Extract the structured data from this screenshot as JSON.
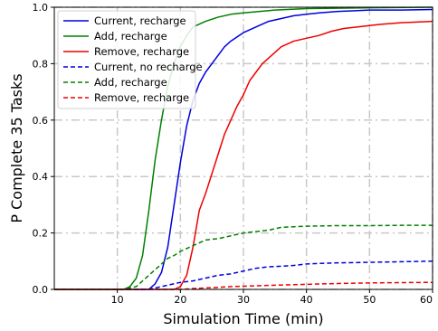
{
  "chart_data": {
    "type": "line",
    "title": "",
    "xlabel": "Simulation Time (min)",
    "ylabel": "P Complete 35 Tasks",
    "xlim": [
      0,
      60
    ],
    "ylim": [
      0,
      1.0
    ],
    "xticks": [
      10,
      20,
      30,
      40,
      50,
      60
    ],
    "yticks": [
      0.0,
      0.2,
      0.4,
      0.6,
      0.8,
      1.0
    ],
    "xtick_labels": [
      "10",
      "20",
      "30",
      "40",
      "50",
      "60"
    ],
    "ytick_labels": [
      "0.0",
      "0.2",
      "0.4",
      "0.6",
      "0.8",
      "1.0"
    ],
    "grid": true,
    "legend_position": "top-left",
    "series": [
      {
        "name": "Current, recharge",
        "color": "#0000dd",
        "style": "solid",
        "points": [
          [
            0,
            0
          ],
          [
            15,
            0
          ],
          [
            16,
            0.02
          ],
          [
            17,
            0.06
          ],
          [
            18,
            0.15
          ],
          [
            19,
            0.3
          ],
          [
            20,
            0.45
          ],
          [
            21,
            0.58
          ],
          [
            22,
            0.67
          ],
          [
            23,
            0.73
          ],
          [
            24,
            0.77
          ],
          [
            25,
            0.8
          ],
          [
            26,
            0.83
          ],
          [
            27,
            0.86
          ],
          [
            28,
            0.88
          ],
          [
            30,
            0.91
          ],
          [
            32,
            0.93
          ],
          [
            34,
            0.95
          ],
          [
            36,
            0.96
          ],
          [
            38,
            0.97
          ],
          [
            40,
            0.975
          ],
          [
            42,
            0.98
          ],
          [
            45,
            0.985
          ],
          [
            50,
            0.99
          ],
          [
            55,
            0.99
          ],
          [
            60,
            0.992
          ]
        ]
      },
      {
        "name": "Add, recharge",
        "color": "#008000",
        "style": "solid",
        "points": [
          [
            0,
            0
          ],
          [
            11,
            0
          ],
          [
            12,
            0.01
          ],
          [
            13,
            0.04
          ],
          [
            14,
            0.12
          ],
          [
            15,
            0.28
          ],
          [
            16,
            0.46
          ],
          [
            17,
            0.6
          ],
          [
            18,
            0.72
          ],
          [
            19,
            0.8
          ],
          [
            20,
            0.86
          ],
          [
            21,
            0.9
          ],
          [
            22,
            0.93
          ],
          [
            24,
            0.95
          ],
          [
            26,
            0.965
          ],
          [
            28,
            0.975
          ],
          [
            30,
            0.98
          ],
          [
            35,
            0.99
          ],
          [
            40,
            0.995
          ],
          [
            50,
            0.998
          ],
          [
            60,
            1.0
          ]
        ]
      },
      {
        "name": "Remove, recharge",
        "color": "#ee0000",
        "style": "solid",
        "points": [
          [
            0,
            0
          ],
          [
            19,
            0
          ],
          [
            20,
            0.01
          ],
          [
            21,
            0.05
          ],
          [
            22,
            0.15
          ],
          [
            23,
            0.28
          ],
          [
            24,
            0.34
          ],
          [
            25,
            0.41
          ],
          [
            26,
            0.48
          ],
          [
            27,
            0.55
          ],
          [
            28,
            0.6
          ],
          [
            29,
            0.65
          ],
          [
            30,
            0.69
          ],
          [
            31,
            0.74
          ],
          [
            32,
            0.77
          ],
          [
            33,
            0.8
          ],
          [
            34,
            0.82
          ],
          [
            36,
            0.86
          ],
          [
            38,
            0.88
          ],
          [
            40,
            0.89
          ],
          [
            42,
            0.9
          ],
          [
            44,
            0.915
          ],
          [
            46,
            0.925
          ],
          [
            48,
            0.93
          ],
          [
            50,
            0.935
          ],
          [
            52,
            0.94
          ],
          [
            55,
            0.945
          ],
          [
            60,
            0.95
          ]
        ]
      },
      {
        "name": "Current, no recharge",
        "color": "#0000dd",
        "style": "dashed",
        "points": [
          [
            0,
            0
          ],
          [
            15,
            0
          ],
          [
            16,
            0.005
          ],
          [
            17,
            0.01
          ],
          [
            18,
            0.015
          ],
          [
            19,
            0.02
          ],
          [
            20,
            0.025
          ],
          [
            22,
            0.03
          ],
          [
            24,
            0.04
          ],
          [
            26,
            0.05
          ],
          [
            28,
            0.055
          ],
          [
            30,
            0.065
          ],
          [
            32,
            0.075
          ],
          [
            34,
            0.08
          ],
          [
            36,
            0.082
          ],
          [
            38,
            0.085
          ],
          [
            40,
            0.09
          ],
          [
            42,
            0.092
          ],
          [
            45,
            0.094
          ],
          [
            50,
            0.096
          ],
          [
            55,
            0.098
          ],
          [
            60,
            0.1
          ]
        ]
      },
      {
        "name": "Add, recharge",
        "color": "#008000",
        "style": "dashed",
        "points": [
          [
            0,
            0
          ],
          [
            11,
            0
          ],
          [
            12,
            0.005
          ],
          [
            13,
            0.01
          ],
          [
            14,
            0.03
          ],
          [
            15,
            0.05
          ],
          [
            16,
            0.07
          ],
          [
            17,
            0.09
          ],
          [
            18,
            0.11
          ],
          [
            19,
            0.12
          ],
          [
            20,
            0.135
          ],
          [
            21,
            0.145
          ],
          [
            22,
            0.155
          ],
          [
            23,
            0.165
          ],
          [
            24,
            0.175
          ],
          [
            26,
            0.18
          ],
          [
            28,
            0.19
          ],
          [
            30,
            0.2
          ],
          [
            32,
            0.205
          ],
          [
            34,
            0.21
          ],
          [
            36,
            0.22
          ],
          [
            38,
            0.222
          ],
          [
            40,
            0.224
          ],
          [
            45,
            0.226
          ],
          [
            50,
            0.226
          ],
          [
            55,
            0.227
          ],
          [
            60,
            0.227
          ]
        ]
      },
      {
        "name": "Remove, recharge",
        "color": "#ee0000",
        "style": "dashed",
        "points": [
          [
            0,
            0
          ],
          [
            20,
            0
          ],
          [
            22,
            0.003
          ],
          [
            25,
            0.006
          ],
          [
            28,
            0.01
          ],
          [
            31,
            0.012
          ],
          [
            35,
            0.015
          ],
          [
            40,
            0.018
          ],
          [
            45,
            0.021
          ],
          [
            50,
            0.023
          ],
          [
            55,
            0.024
          ],
          [
            60,
            0.025
          ]
        ]
      }
    ]
  }
}
